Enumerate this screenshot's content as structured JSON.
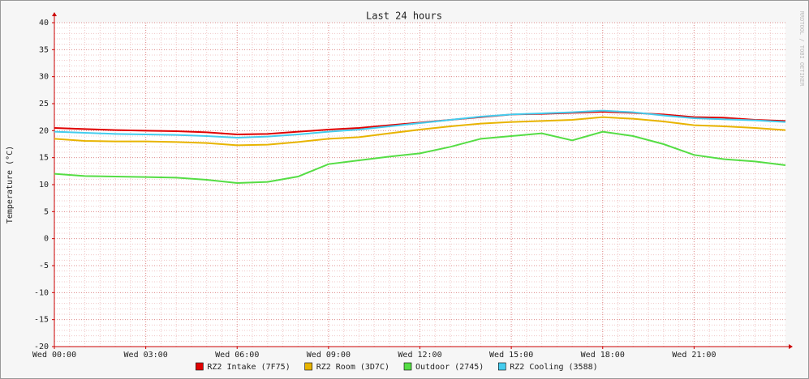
{
  "chart_data": {
    "type": "line",
    "title": "Last 24 hours",
    "ylabel": "Temperature (°C)",
    "watermark": "RRDTOOL / TOBI OETIKER",
    "x": [
      0,
      1,
      2,
      3,
      4,
      5,
      6,
      7,
      8,
      9,
      10,
      11,
      12,
      13,
      14,
      15,
      16,
      17,
      18,
      19,
      20,
      21,
      22,
      23,
      24
    ],
    "xlim": [
      0,
      24
    ],
    "xticks": [
      {
        "value": 0,
        "label": "Wed 00:00"
      },
      {
        "value": 3,
        "label": "Wed 03:00"
      },
      {
        "value": 6,
        "label": "Wed 06:00"
      },
      {
        "value": 9,
        "label": "Wed 09:00"
      },
      {
        "value": 12,
        "label": "Wed 12:00"
      },
      {
        "value": 15,
        "label": "Wed 15:00"
      },
      {
        "value": 18,
        "label": "Wed 18:00"
      },
      {
        "value": 21,
        "label": "Wed 21:00"
      }
    ],
    "ylim": [
      -20,
      40
    ],
    "yticks": [
      -20,
      -15,
      -10,
      -5,
      0,
      5,
      10,
      15,
      20,
      25,
      30,
      35,
      40
    ],
    "grid": true,
    "legend": "bottom",
    "series": [
      {
        "name": "RZ2 Intake (7F75)",
        "color": "#e00000",
        "values": [
          20.5,
          20.3,
          20.1,
          20,
          19.9,
          19.7,
          19.3,
          19.4,
          19.8,
          20.2,
          20.5,
          21,
          21.5,
          22,
          22.5,
          23,
          23.1,
          23.3,
          23.5,
          23.3,
          23,
          22.5,
          22.4,
          22,
          21.8
        ]
      },
      {
        "name": "RZ2 Room (3D7C)",
        "color": "#e8b400",
        "values": [
          18.5,
          18.1,
          18,
          18,
          17.9,
          17.7,
          17.3,
          17.4,
          17.9,
          18.5,
          18.8,
          19.5,
          20.2,
          20.8,
          21.3,
          21.6,
          21.8,
          22,
          22.5,
          22.2,
          21.7,
          21,
          20.8,
          20.5,
          20.1
        ]
      },
      {
        "name": "Outdoor (2745)",
        "color": "#55dd44",
        "values": [
          12,
          11.6,
          11.5,
          11.4,
          11.3,
          10.9,
          10.3,
          10.5,
          11.5,
          13.8,
          14.5,
          15.2,
          15.8,
          17,
          18.5,
          19,
          19.5,
          18.2,
          19.8,
          19,
          17.5,
          15.5,
          14.7,
          14.3,
          13.6
        ]
      },
      {
        "name": "RZ2 Cooling (3588)",
        "color": "#44ccee",
        "values": [
          19.8,
          19.6,
          19.4,
          19.3,
          19.2,
          19,
          18.7,
          18.9,
          19.3,
          19.8,
          20.2,
          20.8,
          21.4,
          22,
          22.6,
          23,
          23.2,
          23.4,
          23.7,
          23.4,
          22.8,
          22.3,
          22.1,
          21.9,
          21.6
        ]
      }
    ]
  }
}
